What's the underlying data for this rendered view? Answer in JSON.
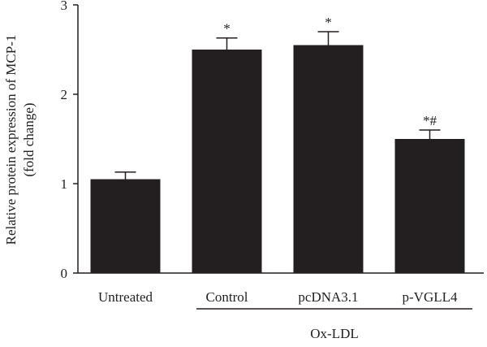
{
  "chart_data": {
    "type": "bar",
    "categories": [
      "Untreated",
      "Control",
      "pcDNA3.1",
      "p-VGLL4"
    ],
    "values": [
      1.05,
      2.5,
      2.55,
      1.5
    ],
    "errors": [
      0.08,
      0.13,
      0.15,
      0.1
    ],
    "annotations": [
      "",
      "*",
      "*",
      "*#"
    ],
    "ylabel_line1": "Relative protein expression of MCP-1",
    "ylabel_line2": "(fold change)",
    "ylim": [
      0,
      3
    ],
    "yticks": [
      "0",
      "1",
      "2",
      "3"
    ],
    "group_label": "Ox-LDL",
    "grid": false
  }
}
